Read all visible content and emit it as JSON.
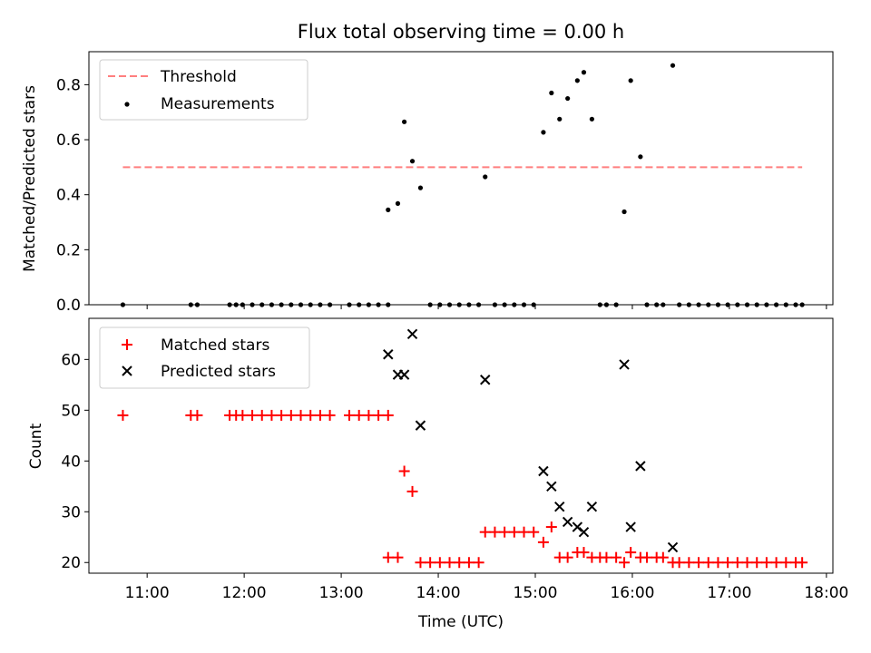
{
  "chart_data": [
    {
      "type": "scatter",
      "title": "Flux total observing time = 0.00 h",
      "xlabel": "",
      "ylabel": "Matched/Predicted stars",
      "xlim": [
        "10:24",
        "18:04"
      ],
      "ylim": [
        0,
        0.92
      ],
      "yticks": [
        0.0,
        0.2,
        0.4,
        0.6,
        0.8
      ],
      "ytick_labels": [
        "0.0",
        "0.2",
        "0.4",
        "0.6",
        "0.8"
      ],
      "legend_position": "top-left",
      "threshold": {
        "name": "Threshold",
        "y": 0.5,
        "x": [
          "10:45",
          "17:45"
        ],
        "color": "#ff7f7f"
      },
      "series": [
        {
          "name": "Measurements",
          "marker": "dot",
          "color": "#000000",
          "x": [
            "10:45",
            "11:27",
            "11:31",
            "11:51",
            "11:55",
            "11:59",
            "12:05",
            "12:11",
            "12:17",
            "12:23",
            "12:29",
            "12:35",
            "12:41",
            "12:47",
            "12:53",
            "13:05",
            "13:11",
            "13:17",
            "13:23",
            "13:29",
            "13:29",
            "13:35",
            "13:39",
            "13:44",
            "13:49",
            "13:55",
            "14:01",
            "14:07",
            "14:13",
            "14:19",
            "14:25",
            "14:29",
            "14:35",
            "14:41",
            "14:47",
            "14:53",
            "14:59",
            "15:05",
            "15:10",
            "15:15",
            "15:20",
            "15:26",
            "15:30",
            "15:35",
            "15:40",
            "15:44",
            "15:50",
            "15:55",
            "15:59",
            "16:05",
            "16:09",
            "16:15",
            "16:19",
            "16:25",
            "16:29",
            "16:35",
            "16:41",
            "16:47",
            "16:53",
            "16:59",
            "17:05",
            "17:11",
            "17:17",
            "17:23",
            "17:29",
            "17:35",
            "17:41",
            "17:45"
          ],
          "y": [
            0,
            0,
            0,
            0,
            0,
            0,
            0,
            0,
            0,
            0,
            0,
            0,
            0,
            0,
            0,
            0,
            0,
            0,
            0,
            0,
            0.345,
            0.368,
            0.665,
            0.522,
            0.425,
            0,
            0,
            0,
            0,
            0,
            0,
            0.465,
            0,
            0,
            0,
            0,
            0,
            0.627,
            0.77,
            0.675,
            0.75,
            0.815,
            0.845,
            0.675,
            0,
            0,
            0,
            0.338,
            0.815,
            0.538,
            0,
            0,
            0,
            0.87,
            0,
            0,
            0,
            0,
            0,
            0,
            0,
            0,
            0,
            0,
            0,
            0,
            0,
            0
          ]
        }
      ]
    },
    {
      "type": "scatter",
      "title": "",
      "xlabel": "Time (UTC)",
      "ylabel": "Count",
      "xlim": [
        "10:24",
        "18:04"
      ],
      "ylim": [
        17.9,
        68.1
      ],
      "yticks": [
        20,
        30,
        40,
        50,
        60
      ],
      "ytick_labels": [
        "20",
        "30",
        "40",
        "50",
        "60"
      ],
      "xticks": [
        "11:00",
        "12:00",
        "13:00",
        "14:00",
        "15:00",
        "16:00",
        "17:00",
        "18:00"
      ],
      "xtick_labels": [
        "11:00",
        "12:00",
        "13:00",
        "14:00",
        "15:00",
        "16:00",
        "17:00",
        "18:00"
      ],
      "legend_position": "top-left",
      "series": [
        {
          "name": "Matched stars",
          "marker": "plus",
          "color": "#ff0000",
          "x": [
            "10:45",
            "11:27",
            "11:31",
            "11:51",
            "11:55",
            "11:59",
            "12:05",
            "12:11",
            "12:17",
            "12:23",
            "12:29",
            "12:35",
            "12:41",
            "12:47",
            "12:53",
            "13:05",
            "13:11",
            "13:17",
            "13:23",
            "13:29",
            "13:29",
            "13:35",
            "13:39",
            "13:44",
            "13:49",
            "13:55",
            "14:01",
            "14:07",
            "14:13",
            "14:19",
            "14:25",
            "14:29",
            "14:35",
            "14:41",
            "14:47",
            "14:53",
            "14:59",
            "15:05",
            "15:10",
            "15:15",
            "15:20",
            "15:26",
            "15:30",
            "15:35",
            "15:40",
            "15:44",
            "15:50",
            "15:55",
            "15:59",
            "16:05",
            "16:09",
            "16:15",
            "16:19",
            "16:25",
            "16:29",
            "16:35",
            "16:41",
            "16:47",
            "16:53",
            "16:59",
            "17:05",
            "17:11",
            "17:17",
            "17:23",
            "17:29",
            "17:35",
            "17:41",
            "17:45"
          ],
          "y": [
            49,
            49,
            49,
            49,
            49,
            49,
            49,
            49,
            49,
            49,
            49,
            49,
            49,
            49,
            49,
            49,
            49,
            49,
            49,
            49,
            21,
            21,
            38,
            34,
            20,
            20,
            20,
            20,
            20,
            20,
            20,
            26,
            26,
            26,
            26,
            26,
            26,
            24,
            27,
            21,
            21,
            22,
            22,
            21,
            21,
            21,
            21,
            20,
            22,
            21,
            21,
            21,
            21,
            20,
            20,
            20,
            20,
            20,
            20,
            20,
            20,
            20,
            20,
            20,
            20,
            20,
            20,
            20
          ]
        },
        {
          "name": "Predicted stars",
          "marker": "x",
          "color": "#000000",
          "x": [
            "13:29",
            "13:35",
            "13:39",
            "13:44",
            "13:49",
            "14:29",
            "15:05",
            "15:10",
            "15:15",
            "15:20",
            "15:26",
            "15:30",
            "15:35",
            "15:55",
            "15:59",
            "16:05",
            "16:25"
          ],
          "y": [
            61,
            57,
            57,
            65,
            47,
            56,
            38,
            35,
            31,
            28,
            27,
            26,
            31,
            59,
            27,
            39,
            23
          ]
        }
      ]
    }
  ]
}
